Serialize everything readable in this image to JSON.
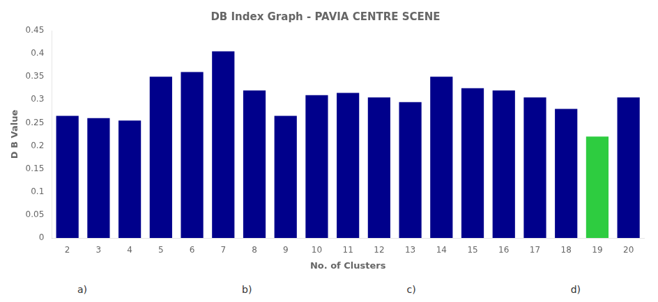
{
  "chart_data": {
    "type": "bar",
    "title": "DB Index Graph - PAVIA CENTRE SCENE",
    "xlabel": "No. of Clusters",
    "ylabel": "D B Value",
    "categories": [
      2,
      3,
      4,
      5,
      6,
      7,
      8,
      9,
      10,
      11,
      12,
      13,
      14,
      15,
      16,
      17,
      18,
      19,
      20
    ],
    "values": [
      0.265,
      0.26,
      0.255,
      0.35,
      0.36,
      0.405,
      0.32,
      0.265,
      0.31,
      0.315,
      0.305,
      0.295,
      0.35,
      0.325,
      0.32,
      0.305,
      0.28,
      0.22,
      0.305
    ],
    "colors": [
      "#00008B",
      "#00008B",
      "#00008B",
      "#00008B",
      "#00008B",
      "#00008B",
      "#00008B",
      "#00008B",
      "#00008B",
      "#00008B",
      "#00008B",
      "#00008B",
      "#00008B",
      "#00008B",
      "#00008B",
      "#00008B",
      "#00008B",
      "#2ECC40",
      "#00008B"
    ],
    "ylim": [
      0,
      0.45
    ],
    "yticks": [
      0,
      0.05,
      0.1,
      0.15,
      0.2,
      0.25,
      0.3,
      0.35,
      0.4,
      0.45
    ],
    "grid": false,
    "annotations": [
      "a)",
      "b)",
      "c)",
      "d)"
    ]
  }
}
